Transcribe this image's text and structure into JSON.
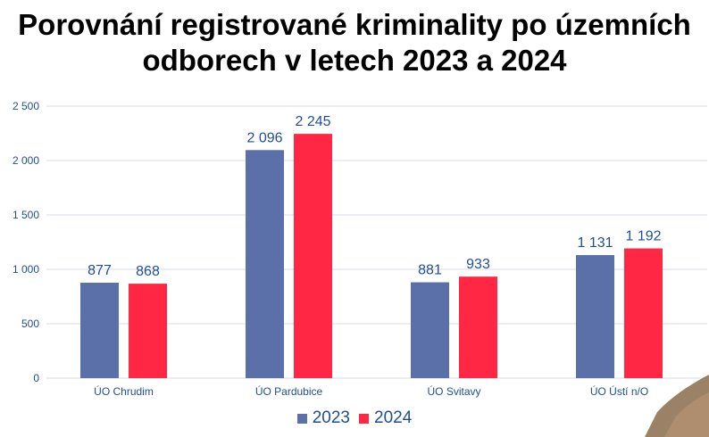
{
  "title_line1": "Porovnání registrované kriminality po územních",
  "title_line2": "odborech v letech 2023 a 2024",
  "chart_data": {
    "type": "bar",
    "title": "Porovnání registrované kriminality po územních odborech v letech 2023 a 2024",
    "categories": [
      "ÚO Chrudim",
      "ÚO Pardubice",
      "ÚO Svitavy",
      "ÚO Ústí n/O"
    ],
    "series": [
      {
        "name": "2023",
        "values": [
          877,
          2096,
          881,
          1131
        ],
        "color": "#5b6fa8",
        "labels": [
          "877",
          "2 096",
          "881",
          "1 131"
        ]
      },
      {
        "name": "2024",
        "values": [
          868,
          2245,
          933,
          1192
        ],
        "color": "#ff2744",
        "labels": [
          "868",
          "2 245",
          "933",
          "1 192"
        ]
      }
    ],
    "ylim": [
      0,
      2500
    ],
    "yticks": [
      0,
      500,
      1000,
      1500,
      2000,
      2500
    ],
    "ytick_labels": [
      "0",
      "500",
      "1 000",
      "1 500",
      "2 000",
      "2 500"
    ],
    "grid": true,
    "legend_position": "bottom",
    "label_color": "#1f4e96",
    "grid_color": "#d6dde9"
  }
}
